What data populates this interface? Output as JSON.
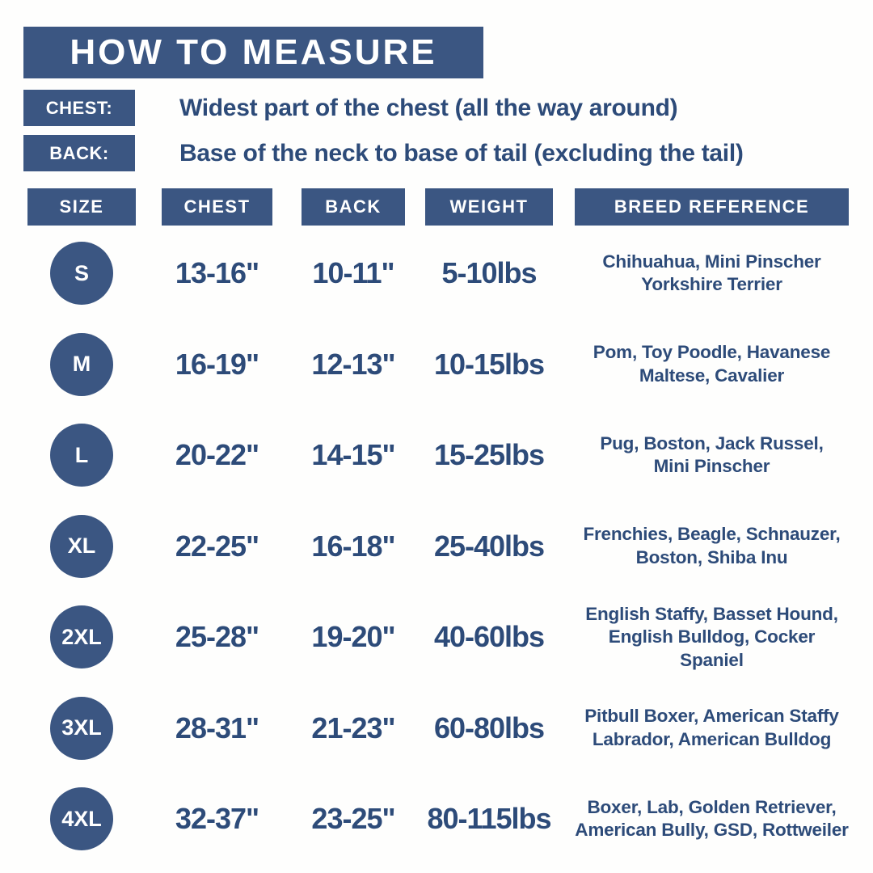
{
  "colors": {
    "navy_fill": "#3b5682",
    "text_navy": "#2d4b79",
    "background": "#fefefd",
    "white": "#ffffff"
  },
  "header": {
    "title": "HOW TO MEASURE"
  },
  "instructions": {
    "chest": {
      "label": "CHEST:",
      "text": "Widest part of the chest (all the way around)"
    },
    "back": {
      "label": "BACK:",
      "text": "Base of the neck to base of tail (excluding the tail)"
    }
  },
  "table": {
    "headers": {
      "size": "SIZE",
      "chest": "CHEST",
      "back": "BACK",
      "weight": "WEIGHT",
      "breed": "BREED REFERENCE"
    },
    "rows": [
      {
        "size": "S",
        "chest": "13-16\"",
        "back": "10-11\"",
        "weight": "5-10lbs",
        "breeds": [
          "Chihuahua, Mini Pinscher",
          "Yorkshire Terrier"
        ]
      },
      {
        "size": "M",
        "chest": "16-19\"",
        "back": "12-13\"",
        "weight": "10-15lbs",
        "breeds": [
          "Pom, Toy Poodle, Havanese",
          "Maltese, Cavalier"
        ]
      },
      {
        "size": "L",
        "chest": "20-22\"",
        "back": "14-15\"",
        "weight": "15-25lbs",
        "breeds": [
          "Pug, Boston, Jack Russel,",
          "Mini Pinscher"
        ]
      },
      {
        "size": "XL",
        "chest": "22-25\"",
        "back": "16-18\"",
        "weight": "25-40lbs",
        "breeds": [
          "Frenchies, Beagle, Schnauzer,",
          "Boston, Shiba Inu"
        ]
      },
      {
        "size": "2XL",
        "chest": "25-28\"",
        "back": "19-20\"",
        "weight": "40-60lbs",
        "breeds": [
          "English Staffy, Basset Hound,",
          "English Bulldog, Cocker",
          "Spaniel"
        ]
      },
      {
        "size": "3XL",
        "chest": "28-31\"",
        "back": "21-23\"",
        "weight": "60-80lbs",
        "breeds": [
          "Pitbull Boxer, American Staffy",
          "Labrador, American Bulldog"
        ]
      },
      {
        "size": "4XL",
        "chest": "32-37\"",
        "back": "23-25\"",
        "weight": "80-115lbs",
        "breeds": [
          "Boxer, Lab, Golden Retriever,",
          "American Bully, GSD, Rottweiler"
        ]
      }
    ]
  }
}
